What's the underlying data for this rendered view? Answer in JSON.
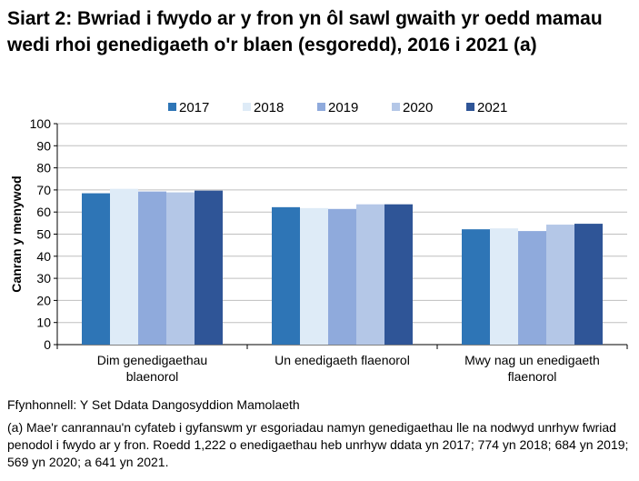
{
  "title": "Siart 2: Bwriad i fwydo ar y fron yn ôl sawl gwaith yr oedd mamau wedi rhoi genedigaeth o'r blaen (esgoredd), 2016 i 2021 (a)",
  "source": "Ffynhonnell: Y Set Ddata Dangosyddion Mamolaeth",
  "footnote": "(a) Mae'r canrannau'n cyfateb i gyfanswm yr esgoriadau namyn genedigaethau lle na nodwyd unrhyw fwriad penodol i fwydo ar y fron. Roedd 1,222 o enedigaethau heb unrhyw ddata yn 2017; 774 yn 2018; 684 yn 2019; 569 yn 2020; a 641 yn 2021.",
  "chart_data": {
    "type": "bar",
    "ylabel": "Canran y menywod",
    "xlabel": "",
    "ylim": [
      0,
      100
    ],
    "yticks": [
      0,
      10,
      20,
      30,
      40,
      50,
      60,
      70,
      80,
      90,
      100
    ],
    "grid": true,
    "legend": "top",
    "categories": [
      [
        "Dim genedigaethau",
        "blaenorol"
      ],
      [
        "Un enedigaeth flaenorol"
      ],
      [
        "Mwy nag un enedigaeth",
        "flaenorol"
      ]
    ],
    "series": [
      {
        "name": "2017",
        "color": "#2E75B6",
        "values": [
          68.5,
          62.2,
          52.2
        ]
      },
      {
        "name": "2018",
        "color": "#DEEBF7",
        "values": [
          70.5,
          61.8,
          52.6
        ]
      },
      {
        "name": "2019",
        "color": "#8FAADC",
        "values": [
          69.3,
          61.4,
          51.4
        ]
      },
      {
        "name": "2020",
        "color": "#B4C7E7",
        "values": [
          68.9,
          63.5,
          54.3
        ]
      },
      {
        "name": "2021",
        "color": "#2F5597",
        "values": [
          69.7,
          63.5,
          54.7
        ]
      }
    ]
  }
}
